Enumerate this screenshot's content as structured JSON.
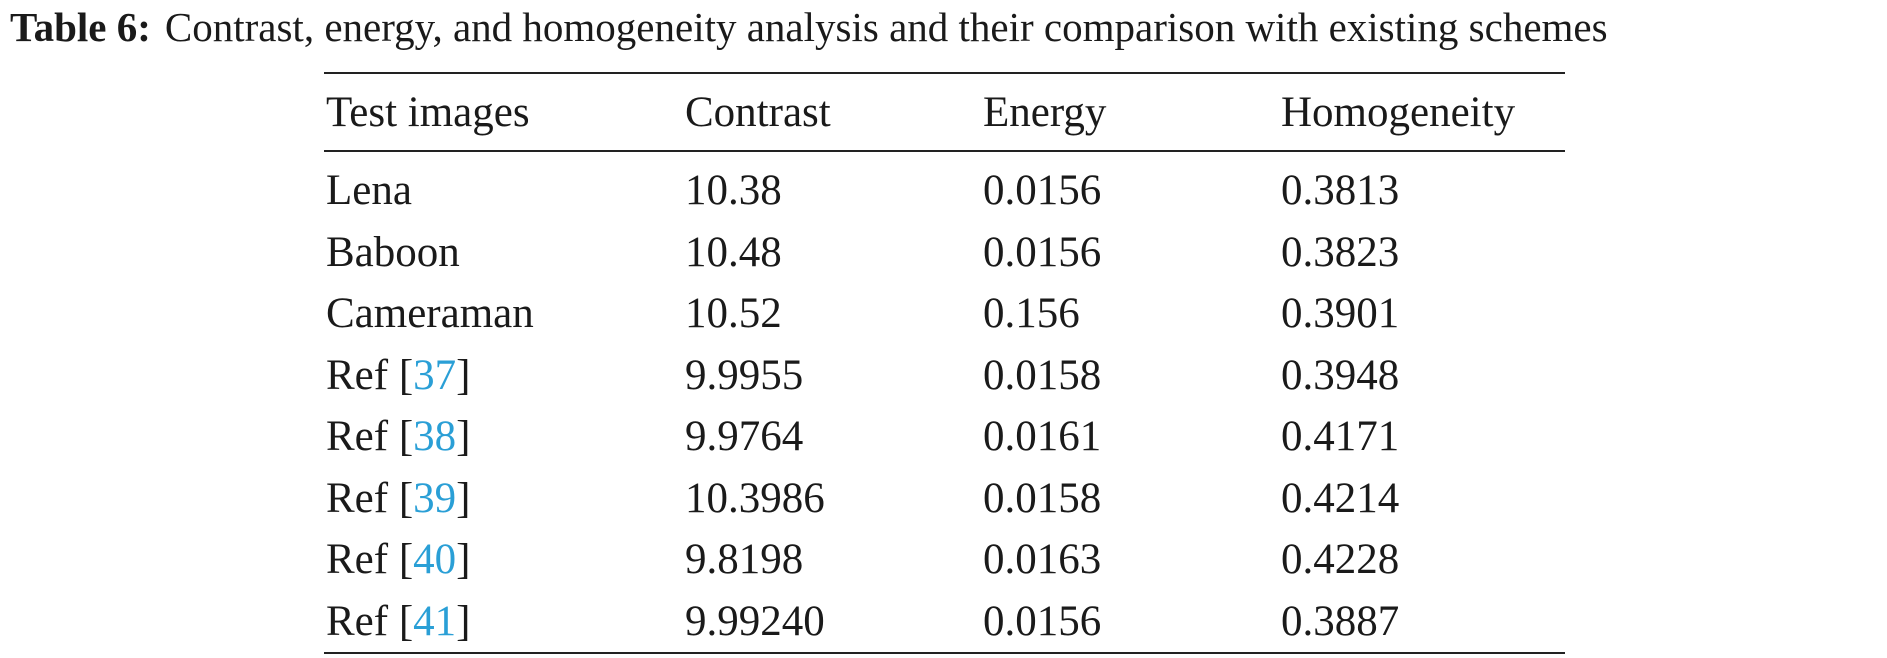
{
  "caption": {
    "label": "Table 6:",
    "text": "Contrast, energy, and homogeneity analysis and their comparison with existing schemes"
  },
  "table": {
    "headers": [
      "Test images",
      "Contrast",
      "Energy",
      "Homogeneity"
    ],
    "rows": [
      {
        "image": "Lena",
        "contrast": "10.38",
        "energy": "0.0156",
        "homogeneity": "0.3813"
      },
      {
        "image": "Baboon",
        "contrast": "10.48",
        "energy": "0.0156",
        "homogeneity": "0.3823"
      },
      {
        "image": "Cameraman",
        "contrast": "10.52",
        "energy": "0.156",
        "homogeneity": "0.3901"
      },
      {
        "ref_prefix": "Ref [",
        "ref_num": "37",
        "ref_suffix": "]",
        "contrast": "9.9955",
        "energy": "0.0158",
        "homogeneity": "0.3948"
      },
      {
        "ref_prefix": "Ref [",
        "ref_num": "38",
        "ref_suffix": "]",
        "contrast": "9.9764",
        "energy": "0.0161",
        "homogeneity": "0.4171"
      },
      {
        "ref_prefix": "Ref [",
        "ref_num": "39",
        "ref_suffix": "]",
        "contrast": "10.3986",
        "energy": "0.0158",
        "homogeneity": "0.4214"
      },
      {
        "ref_prefix": "Ref [",
        "ref_num": "40",
        "ref_suffix": "]",
        "contrast": "9.8198",
        "energy": "0.0163",
        "homogeneity": "0.4228"
      },
      {
        "ref_prefix": "Ref [",
        "ref_num": "41",
        "ref_suffix": "]",
        "contrast": "9.99240",
        "energy": "0.0156",
        "homogeneity": "0.3887"
      }
    ]
  },
  "colors": {
    "text": "#1a1a1a",
    "link": "#2a9fd6",
    "rule": "#222222"
  }
}
